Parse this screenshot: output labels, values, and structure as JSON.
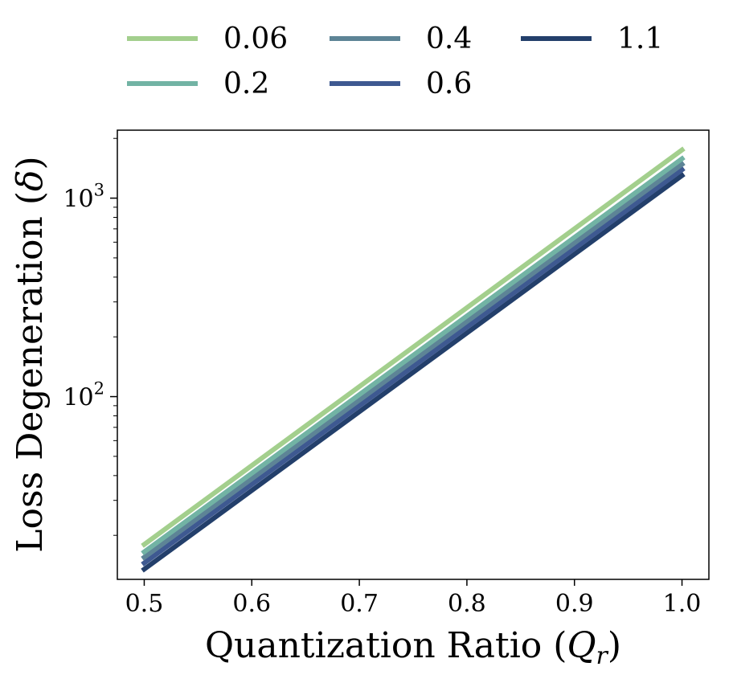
{
  "chart_data": {
    "type": "line",
    "xlabel": "Quantization Ratio (Q_r)",
    "ylabel": "Loss Degeneration (δ)",
    "xscale": "linear",
    "yscale": "log",
    "xlim": [
      0.475,
      1.025
    ],
    "ylim": [
      12,
      2200
    ],
    "x_ticks": [
      {
        "value": 0.5,
        "label": "0.5"
      },
      {
        "value": 0.6,
        "label": "0.6"
      },
      {
        "value": 0.7,
        "label": "0.7"
      },
      {
        "value": 0.8,
        "label": "0.8"
      },
      {
        "value": 0.9,
        "label": "0.9"
      },
      {
        "value": 1.0,
        "label": "1.0"
      }
    ],
    "y_ticks": [
      {
        "value": 100,
        "base": "10",
        "exp": "2"
      },
      {
        "value": 1000,
        "base": "10",
        "exp": "3"
      }
    ],
    "legend_position": "top, above plot, 3 columns",
    "series": [
      {
        "name": "0.06",
        "color": "#a3cf8d",
        "x": [
          0.5,
          1.0
        ],
        "y": [
          18,
          1750
        ]
      },
      {
        "name": "0.2",
        "color": "#72b3a4",
        "x": [
          0.5,
          1.0
        ],
        "y": [
          16.5,
          1580
        ]
      },
      {
        "name": "0.4",
        "color": "#5d8496",
        "x": [
          0.5,
          1.0
        ],
        "y": [
          15.5,
          1480
        ]
      },
      {
        "name": "0.6",
        "color": "#3e5991",
        "x": [
          0.5,
          1.0
        ],
        "y": [
          14.5,
          1390
        ]
      },
      {
        "name": "1.1",
        "color": "#233f6b",
        "x": [
          0.5,
          1.0
        ],
        "y": [
          13.5,
          1300
        ]
      }
    ]
  }
}
